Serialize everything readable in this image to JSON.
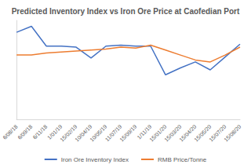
{
  "chart_data": {
    "type": "line",
    "title": "Predicted Inventory Index vs Iron Ore Price at Caofedian Port",
    "categories": [
      "6/08/18",
      "6/09/18",
      "6/11/18",
      "1/01/19",
      "15/02/19",
      "10/04/19",
      "10/05/19",
      "11/07/19",
      "15/09/19",
      "1/11/19",
      "15/01/20",
      "15/03/20",
      "15/04/20",
      "15/05/20",
      "15/07/20",
      "15/08/20"
    ],
    "series": [
      {
        "name": "Iron Ore Inventory Index",
        "color": "#4472c4",
        "values": [
          88,
          94,
          74,
          74,
          73,
          62,
          74,
          75,
          74,
          74,
          45,
          52,
          58,
          50,
          63,
          76
        ]
      },
      {
        "name": "RMB Price/Tonne",
        "color": "#ed7d31",
        "values": [
          65,
          65,
          67,
          68,
          69,
          70,
          71,
          73,
          72,
          75,
          70,
          65,
          60,
          58,
          65,
          73
        ]
      }
    ],
    "ylim": [
      0,
      100
    ],
    "grid": false,
    "legend": "bottom",
    "tick_labels": "x"
  }
}
